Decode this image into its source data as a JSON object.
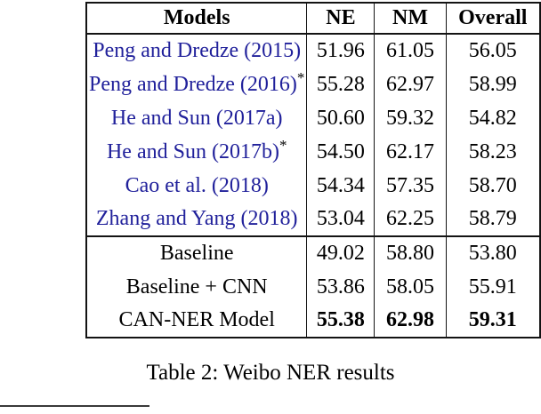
{
  "colors": {
    "citation_blue": "#21219b",
    "text": "#000000",
    "table_border": "#131313"
  },
  "table": {
    "caption": "Table 2: Weibo NER results",
    "headers": {
      "models": "Models",
      "ne": "NE",
      "nm": "NM",
      "overall": "Overall"
    },
    "rows": [
      {
        "model": "Peng and Dredze (2015)",
        "sup": "",
        "ne": "51.96",
        "nm": "61.05",
        "overall": "56.05"
      },
      {
        "model": "Peng and Dredze (2016)",
        "sup": "*",
        "ne": "55.28",
        "nm": "62.97",
        "overall": "58.99"
      },
      {
        "model": "He and Sun (2017a)",
        "sup": "",
        "ne": "50.60",
        "nm": "59.32",
        "overall": "54.82"
      },
      {
        "model": "He and Sun (2017b)",
        "sup": "*",
        "ne": "54.50",
        "nm": "62.17",
        "overall": "58.23"
      },
      {
        "model": "Cao et al. (2018)",
        "sup": "",
        "ne": "54.34",
        "nm": "57.35",
        "overall": "58.70"
      },
      {
        "model": "Zhang and Yang (2018)",
        "sup": "",
        "ne": "53.04",
        "nm": "62.25",
        "overall": "58.79"
      },
      {
        "model": "Baseline",
        "sup": "",
        "ne": "49.02",
        "nm": "58.80",
        "overall": "53.80"
      },
      {
        "model": "Baseline + CNN",
        "sup": "",
        "ne": "53.86",
        "nm": "58.05",
        "overall": "55.91"
      },
      {
        "model": "CAN-NER Model",
        "sup": "",
        "ne": "55.38",
        "nm": "62.98",
        "overall": "59.31"
      }
    ]
  }
}
